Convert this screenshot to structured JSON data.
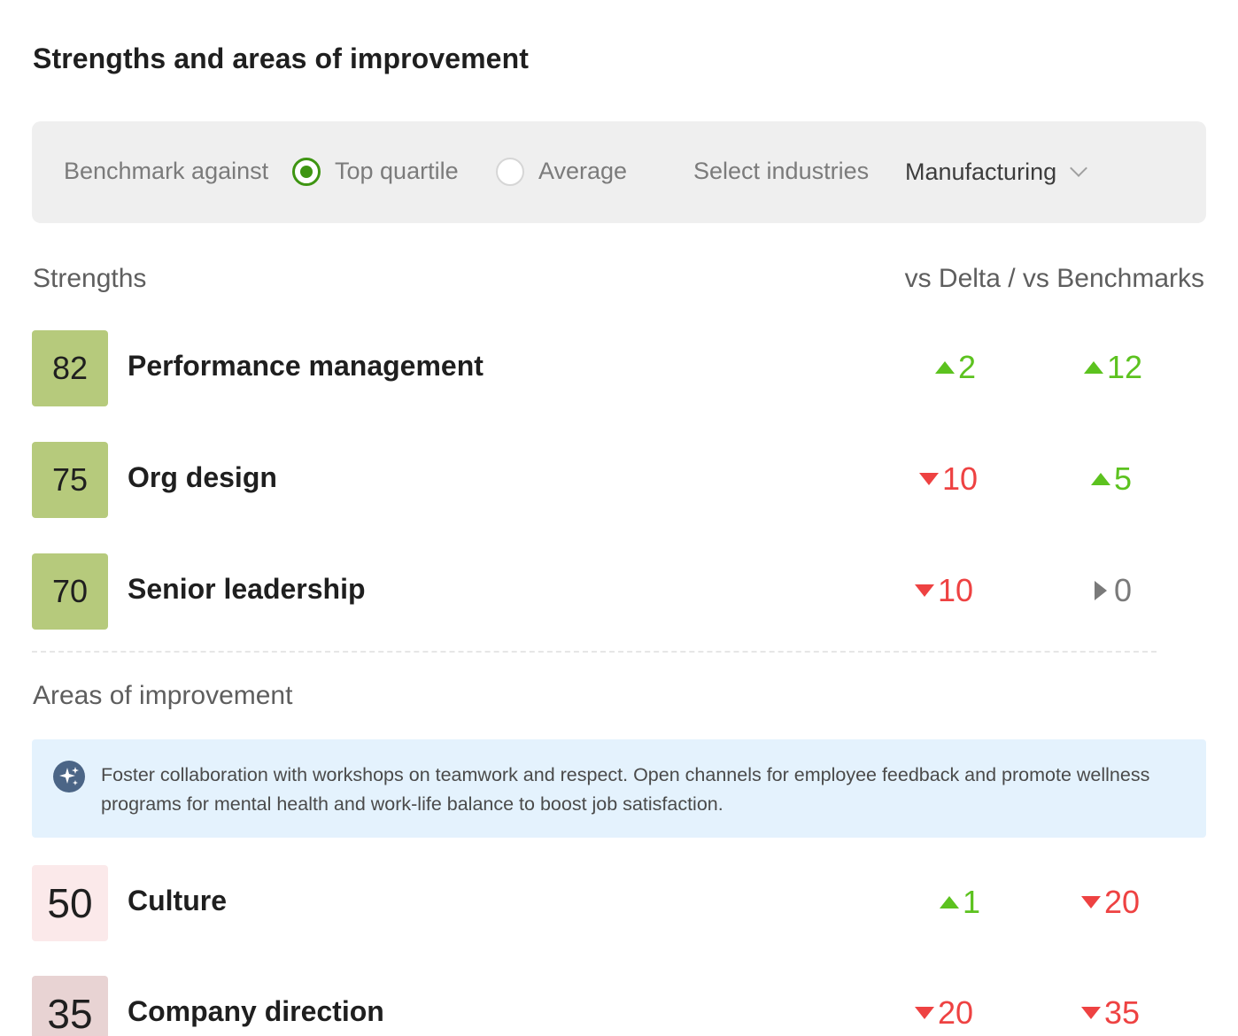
{
  "title": "Strengths and areas of improvement",
  "filters": {
    "benchmark_label": "Benchmark against",
    "options": [
      {
        "label": "Top quartile",
        "selected": true
      },
      {
        "label": "Average",
        "selected": false
      }
    ],
    "industry_label": "Select industries",
    "industry_value": "Manufacturing",
    "accent_color": "#3e9512"
  },
  "strengths": {
    "heading": "Strengths",
    "column_heading": "vs Delta / vs Benchmarks",
    "rows": [
      {
        "score": "82",
        "label": "Performance management",
        "delta": {
          "dir": "up",
          "value": "2"
        },
        "benchmark": {
          "dir": "up",
          "value": "12"
        }
      },
      {
        "score": "75",
        "label": "Org design",
        "delta": {
          "dir": "down",
          "value": "10"
        },
        "benchmark": {
          "dir": "up",
          "value": "5"
        }
      },
      {
        "score": "70",
        "label": "Senior leadership",
        "delta": {
          "dir": "down",
          "value": "10"
        },
        "benchmark": {
          "dir": "flat",
          "value": "0"
        }
      }
    ]
  },
  "improvement": {
    "heading": "Areas of improvement",
    "insight": "Foster collaboration with workshops on teamwork and respect. Open channels for employee feedback and promote wellness programs for mental health and work-life balance to boost job satisfaction.",
    "insight_icon": "sparkle-icon",
    "rows": [
      {
        "score": "50",
        "label": "Culture",
        "delta": {
          "dir": "up",
          "value": "1"
        },
        "benchmark": {
          "dir": "down",
          "value": "20"
        }
      },
      {
        "score": "35",
        "label": "Company direction",
        "delta": {
          "dir": "down",
          "value": "20"
        },
        "benchmark": {
          "dir": "down",
          "value": "35"
        }
      }
    ]
  },
  "colors": {
    "strength_score_bg": "#b6ca7c",
    "improvement_score_bg_light": "#fbe9ea",
    "improvement_score_bg_dark": "#e8d3d3",
    "up": "#5cc21f",
    "down": "#ee4242",
    "neutral": "#7a7a7a"
  }
}
